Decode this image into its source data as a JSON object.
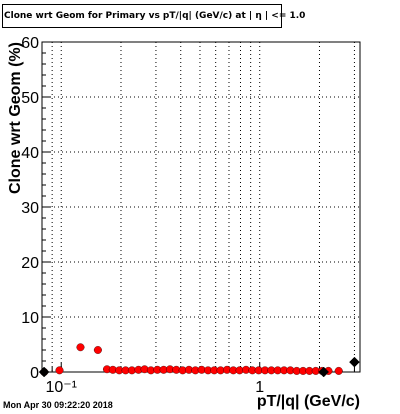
{
  "title": "Clone wrt Geom for Primary vs pT/|q| (GeV/c) at | η | <= 1.0",
  "timestamp": "Mon Apr 30 09:22:20 2018",
  "colors": {
    "primary": "#ff0000",
    "reference": "#000000",
    "grid": "#000000"
  },
  "chart_data": {
    "type": "scatter",
    "title": "Clone wrt Geom for Primary vs pT/|q| (GeV/c) at | η | <= 1.0",
    "xlabel": "pT/|q| (GeV/c)",
    "ylabel": "Clone wrt Geom (%)",
    "x_scale": "log",
    "xlim": [
      0.08,
      3.2
    ],
    "ylim": [
      0,
      60
    ],
    "grid": true,
    "x_ticks": [
      {
        "value": 0.1,
        "label": "10⁻¹"
      },
      {
        "value": 1,
        "label": "1"
      }
    ],
    "y_ticks": [
      0,
      10,
      20,
      30,
      40,
      50,
      60
    ],
    "series": [
      {
        "color": "#ff0000",
        "marker": "circle",
        "x": [
          0.082,
          0.098,
          0.125,
          0.153,
          0.17,
          0.182,
          0.196,
          0.211,
          0.227,
          0.245,
          0.263,
          0.283,
          0.305,
          0.328,
          0.353,
          0.38,
          0.409,
          0.44,
          0.474,
          0.51,
          0.549,
          0.59,
          0.635,
          0.684,
          0.736,
          0.792,
          0.853,
          0.918,
          0.988,
          1.063,
          1.144,
          1.232,
          1.326,
          1.427,
          1.536,
          1.653,
          1.78,
          1.916,
          2.062,
          2.219,
          2.5
        ],
        "y": [
          0.0,
          0.3,
          4.5,
          4.0,
          0.5,
          0.4,
          0.3,
          0.3,
          0.3,
          0.4,
          0.5,
          0.3,
          0.4,
          0.4,
          0.5,
          0.4,
          0.3,
          0.4,
          0.3,
          0.4,
          0.3,
          0.3,
          0.3,
          0.4,
          0.3,
          0.3,
          0.4,
          0.3,
          0.3,
          0.3,
          0.3,
          0.3,
          0.3,
          0.3,
          0.2,
          0.2,
          0.2,
          0.2,
          0.2,
          0.2,
          0.2
        ]
      },
      {
        "color": "#000000",
        "marker": "diamond",
        "x": [
          0.082,
          2.1,
          3.0
        ],
        "y": [
          0.0,
          0.0,
          1.8
        ]
      }
    ]
  }
}
